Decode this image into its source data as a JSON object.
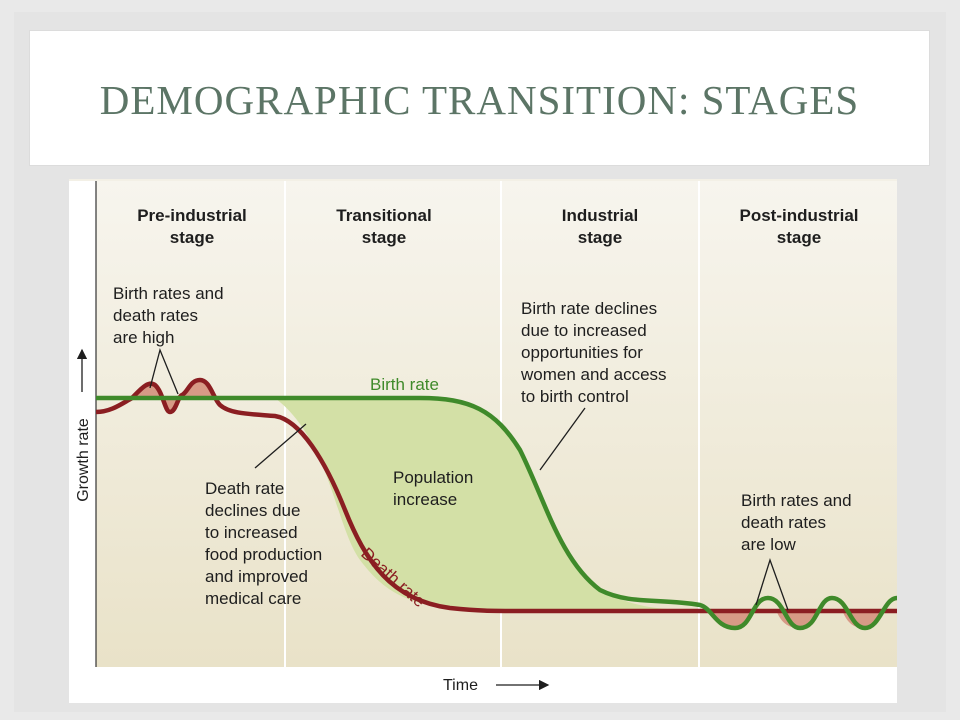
{
  "slide": {
    "title": "DEMOGRAPHIC TRANSITION: STAGES"
  },
  "diagram": {
    "stages": [
      {
        "line1": "Pre-industrial",
        "line2": "stage"
      },
      {
        "line1": "Transitional",
        "line2": "stage"
      },
      {
        "line1": "Industrial",
        "line2": "stage"
      },
      {
        "line1": "Post-industrial",
        "line2": "stage"
      }
    ],
    "y_axis_label": "Growth rate",
    "x_axis_label": "Time",
    "birth_rate_label": "Birth rate",
    "death_rate_label": "Death rate",
    "population_increase": [
      "Population",
      "increase"
    ],
    "annotations": {
      "high_rates": [
        "Birth rates and",
        "death rates",
        "are high"
      ],
      "death_decline": [
        "Death rate",
        "declines due",
        "to increased",
        "food production",
        "and improved",
        "medical care"
      ],
      "birth_decline": [
        "Birth rate declines",
        "due to increased",
        "opportunities for",
        "women and access",
        "to birth control"
      ],
      "low_rates": [
        "Birth rates and",
        "death rates",
        "are low"
      ]
    },
    "colors": {
      "birth_rate": "#3f8a2a",
      "death_rate": "#8b1e22",
      "population_fill": "#d3e0a6",
      "fluctuation_fill": "#d79a86",
      "background_top": "#f6f4ec",
      "background_bottom": "#e9e3cb"
    }
  }
}
